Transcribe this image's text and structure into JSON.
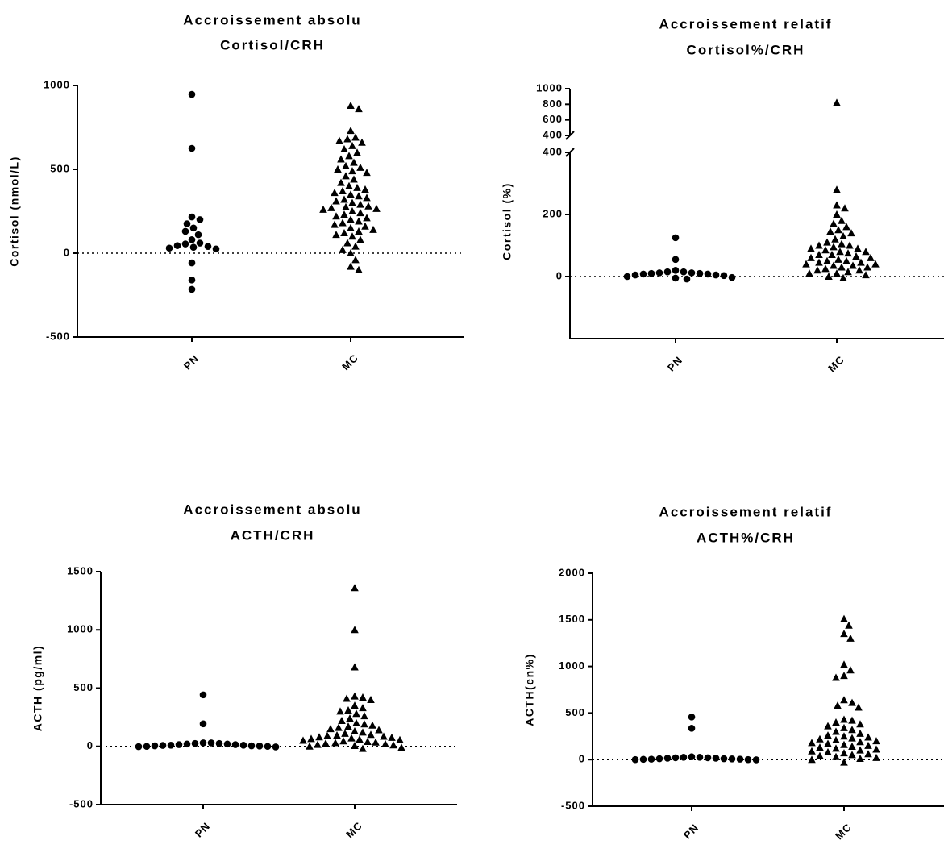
{
  "chart_data": [
    {
      "type": "beeswarm",
      "title": "Accroissement absolu",
      "subtitle": "Cortisol/CRH",
      "ylabel": "Cortisol (nmol/L)",
      "categories": [
        "PN",
        "MC"
      ],
      "groups": [
        {
          "marker": "circle",
          "values": [
            947,
            625,
            216,
            200,
            175,
            150,
            130,
            110,
            80,
            60,
            55,
            45,
            40,
            35,
            30,
            25,
            -58,
            -160,
            -216
          ]
        },
        {
          "marker": "triangle",
          "values": [
            880,
            860,
            730,
            690,
            680,
            670,
            660,
            640,
            620,
            600,
            580,
            560,
            540,
            520,
            510,
            500,
            490,
            480,
            460,
            440,
            420,
            400,
            390,
            380,
            370,
            360,
            350,
            340,
            330,
            320,
            310,
            300,
            290,
            280,
            275,
            270,
            265,
            260,
            250,
            240,
            230,
            220,
            210,
            200,
            190,
            180,
            170,
            160,
            150,
            140,
            130,
            120,
            110,
            100,
            80,
            60,
            40,
            20,
            0,
            -40,
            -80,
            -100
          ]
        }
      ],
      "ylim": [
        -500,
        1000
      ],
      "yticks": [
        -500,
        0,
        500,
        1000
      ],
      "reference_line": 0,
      "color": "#000000"
    },
    {
      "type": "beeswarm",
      "title": "Accroissement relatif",
      "subtitle": "Cortisol%/CRH",
      "ylabel": "Cortisol (%)",
      "categories": [
        "PN",
        "MC"
      ],
      "groups": [
        {
          "marker": "circle",
          "values": [
            125,
            55,
            20,
            15,
            12,
            10,
            10,
            8,
            8,
            5,
            5,
            3,
            0,
            -3,
            -5,
            -8,
            12,
            15
          ]
        },
        {
          "marker": "triangle",
          "values": [
            820,
            280,
            230,
            220,
            200,
            180,
            170,
            160,
            150,
            145,
            140,
            130,
            120,
            110,
            105,
            100,
            100,
            95,
            90,
            90,
            85,
            80,
            80,
            75,
            70,
            70,
            65,
            60,
            60,
            55,
            50,
            50,
            45,
            45,
            40,
            40,
            35,
            35,
            30,
            30,
            25,
            20,
            20,
            15,
            10,
            10,
            5,
            0,
            -5
          ]
        }
      ],
      "ylim": [
        -200,
        400
      ],
      "yticks": [
        0,
        200,
        400
      ],
      "upper_ylim": [
        400,
        1000
      ],
      "upper_yticks": [
        400,
        600,
        800,
        1000
      ],
      "reference_line": 0,
      "color": "#000000"
    },
    {
      "type": "beeswarm",
      "title": "Accroissement absolu",
      "subtitle": "ACTH/CRH",
      "ylabel": "ACTH (pg/ml)",
      "categories": [
        "PN",
        "MC"
      ],
      "groups": [
        {
          "marker": "circle",
          "values": [
            442,
            193,
            30,
            25,
            20,
            15,
            10,
            8,
            5,
            3,
            0,
            -2,
            -5,
            0,
            5,
            10,
            15,
            20,
            25,
            30
          ]
        },
        {
          "marker": "triangle",
          "values": [
            1360,
            1000,
            680,
            430,
            420,
            410,
            400,
            350,
            330,
            310,
            300,
            280,
            260,
            240,
            220,
            200,
            190,
            180,
            170,
            160,
            150,
            140,
            130,
            120,
            110,
            100,
            95,
            90,
            85,
            80,
            75,
            70,
            65,
            60,
            55,
            50,
            45,
            40,
            35,
            30,
            25,
            20,
            15,
            10,
            5,
            0,
            -10,
            -20
          ]
        }
      ],
      "ylim": [
        -500,
        1500
      ],
      "yticks": [
        -500,
        0,
        500,
        1000,
        1500
      ],
      "reference_line": 0,
      "color": "#000000"
    },
    {
      "type": "beeswarm",
      "title": "Accroissement relatif",
      "subtitle": "ACTH%/CRH",
      "ylabel": "ACTH(en%)",
      "categories": [
        "PN",
        "MC"
      ],
      "groups": [
        {
          "marker": "circle",
          "values": [
            457,
            336,
            30,
            25,
            20,
            15,
            10,
            8,
            5,
            3,
            0,
            -2,
            0,
            5,
            10,
            15,
            20,
            25
          ]
        },
        {
          "marker": "triangle",
          "values": [
            1510,
            1440,
            1350,
            1300,
            1020,
            960,
            900,
            880,
            640,
            610,
            580,
            560,
            430,
            420,
            400,
            380,
            360,
            340,
            320,
            300,
            280,
            260,
            250,
            240,
            230,
            220,
            210,
            200,
            190,
            180,
            170,
            160,
            150,
            140,
            130,
            120,
            110,
            100,
            90,
            80,
            70,
            60,
            50,
            40,
            30,
            20,
            10,
            0,
            -30
          ]
        }
      ],
      "ylim": [
        -500,
        2000
      ],
      "yticks": [
        -500,
        0,
        500,
        1000,
        1500,
        2000
      ],
      "reference_line": 0,
      "color": "#000000"
    }
  ]
}
